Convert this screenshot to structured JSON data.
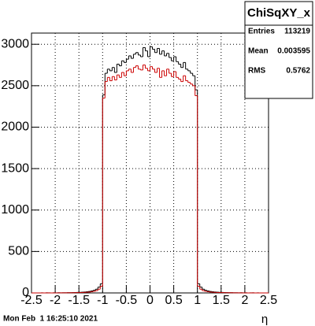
{
  "chart_data": {
    "type": "histogram",
    "title": "ChiSqXY_x",
    "stats": [
      {
        "label": "Entries",
        "value": "113219"
      },
      {
        "label": "Mean",
        "value": "0.003595"
      },
      {
        "label": "RMS",
        "value": "0.5762"
      }
    ],
    "timestamp": "Mon Feb  1 16:25:10 2021",
    "xlabel": "η",
    "bins": [
      -2.5,
      -2.45,
      -2.4,
      -2.35,
      -2.3,
      -2.25,
      -2.2,
      -2.15,
      -2.1,
      -2.05,
      -2.0,
      -1.95,
      -1.9,
      -1.85,
      -1.8,
      -1.75,
      -1.7,
      -1.65,
      -1.6,
      -1.55,
      -1.5,
      -1.45,
      -1.4,
      -1.35,
      -1.3,
      -1.25,
      -1.2,
      -1.15,
      -1.1,
      -1.05,
      -1.0,
      -0.95,
      -0.9,
      -0.85,
      -0.8,
      -0.75,
      -0.7,
      -0.65,
      -0.6,
      -0.55,
      -0.5,
      -0.45,
      -0.4,
      -0.35,
      -0.3,
      -0.25,
      -0.2,
      -0.15,
      -0.1,
      -0.05,
      0,
      0.05,
      0.1,
      0.15,
      0.2,
      0.25,
      0.3,
      0.35,
      0.4,
      0.45,
      0.5,
      0.55,
      0.6,
      0.65,
      0.7,
      0.75,
      0.8,
      0.85,
      0.9,
      0.95,
      1.0,
      1.05,
      1.1,
      1.15,
      1.2,
      1.25,
      1.3,
      1.35,
      1.4,
      1.45,
      1.5,
      1.55,
      1.6,
      1.65,
      1.7,
      1.75,
      1.8,
      1.85,
      1.9,
      1.95,
      2.0,
      2.05,
      2.1,
      2.15,
      2.2,
      2.25,
      2.3,
      2.35,
      2.4,
      2.45,
      2.5
    ],
    "series": [
      {
        "color": "#000000",
        "values": [
          0,
          0,
          0,
          0,
          1,
          0,
          1,
          1,
          0,
          1,
          1,
          2,
          1,
          2,
          2,
          3,
          3,
          4,
          5,
          6,
          7,
          9,
          11,
          14,
          18,
          24,
          32,
          45,
          70,
          110,
          2390,
          2650,
          2700,
          2680,
          2720,
          2660,
          2760,
          2740,
          2800,
          2780,
          2820,
          2860,
          2830,
          2880,
          2900,
          2870,
          2850,
          2960,
          2920,
          2850,
          2970,
          2940,
          2900,
          2950,
          2880,
          2920,
          2860,
          2890,
          2840,
          2800,
          2850,
          2790,
          2760,
          2720,
          2780,
          2700,
          2680,
          2650,
          2620,
          2450,
          110,
          70,
          45,
          32,
          24,
          18,
          14,
          11,
          9,
          7,
          6,
          5,
          4,
          3,
          3,
          2,
          2,
          1,
          2,
          1,
          1,
          0,
          1,
          1,
          0,
          1,
          0,
          0,
          0,
          0
        ]
      },
      {
        "color": "#cc0000",
        "values": [
          0,
          0,
          0,
          0,
          0,
          0,
          1,
          0,
          0,
          1,
          0,
          1,
          1,
          1,
          1,
          2,
          2,
          2,
          3,
          4,
          4,
          5,
          7,
          8,
          11,
          15,
          20,
          28,
          45,
          80,
          2350,
          2550,
          2600,
          2560,
          2610,
          2570,
          2630,
          2600,
          2660,
          2620,
          2680,
          2700,
          2660,
          2720,
          2740,
          2700,
          2690,
          2750,
          2710,
          2680,
          2730,
          2700,
          2660,
          2710,
          2600,
          2680,
          2620,
          2700,
          2650,
          2610,
          2670,
          2600,
          2580,
          2550,
          2620,
          2560,
          2540,
          2520,
          2500,
          2380,
          80,
          45,
          28,
          20,
          15,
          11,
          8,
          7,
          5,
          4,
          4,
          3,
          2,
          2,
          2,
          1,
          1,
          1,
          1,
          0,
          1,
          0,
          0,
          1,
          0,
          0,
          0,
          0,
          0,
          0
        ]
      }
    ],
    "xlim": [
      -2.5,
      2.5
    ],
    "ylim": [
      0,
      3135
    ],
    "xticks": [
      -2.5,
      -2,
      -1.5,
      -1,
      -0.5,
      0,
      0.5,
      1,
      1.5,
      2,
      2.5
    ],
    "yticks": [
      0,
      500,
      1000,
      1500,
      2000,
      2500,
      3000
    ],
    "grid": true
  }
}
